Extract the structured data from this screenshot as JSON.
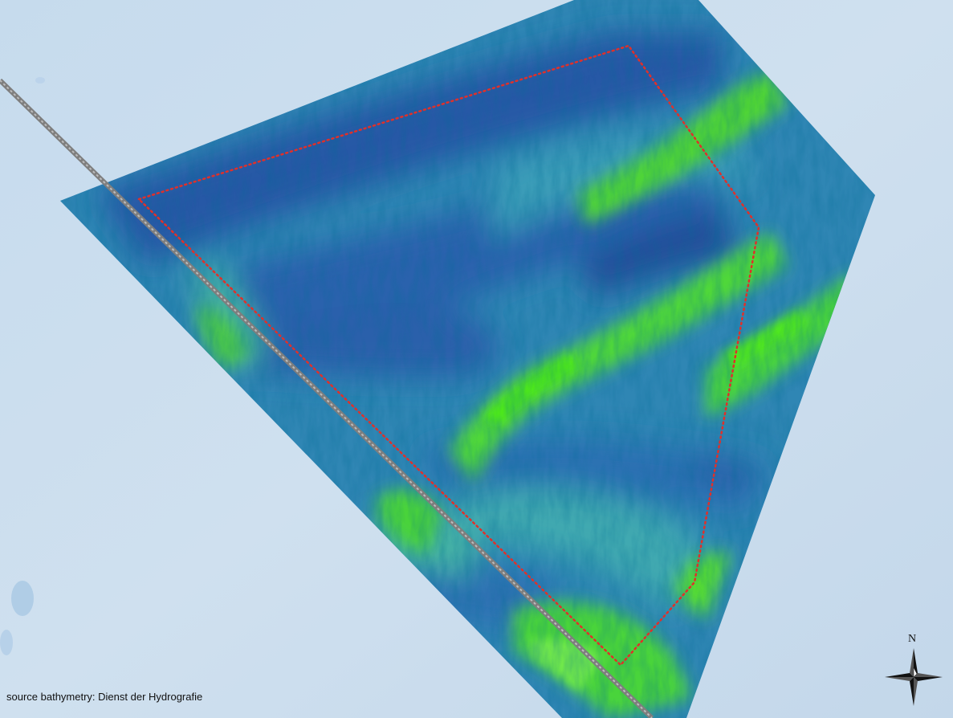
{
  "map": {
    "source_note": "source bathymetry: Dienst der Hydrografie",
    "north_arrow_label": "N",
    "colors": {
      "background_sea": "#c9dcec",
      "depth_deep": "#1f4e9a",
      "depth_mid": "#2f88b6",
      "depth_shallow": "#5ac76a",
      "ridge_crest": "#4ee019",
      "survey_boundary": "#e0302a",
      "cable_route": "#9a9a9a"
    },
    "icons": [
      "compass-rose-icon"
    ]
  }
}
